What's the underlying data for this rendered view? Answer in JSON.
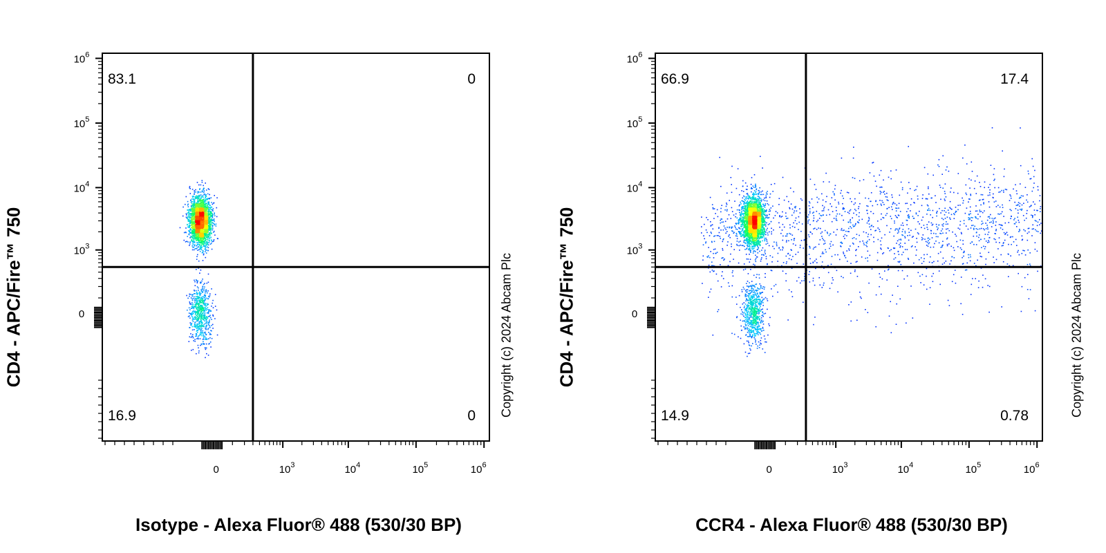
{
  "chart_data": [
    {
      "type": "scatter",
      "subtype": "flow-cytometry-density-plot",
      "xlabel": "Isotype - Alexa Fluor® 488 (530/30 BP)",
      "ylabel": "CD4 - APC/Fire™ 750",
      "x_scale": "biexponential",
      "y_scale": "biexponential",
      "x_ticks": [
        {
          "label": "0",
          "value": 0
        },
        {
          "label": "10",
          "sup": "3",
          "value": 1000
        },
        {
          "label": "10",
          "sup": "4",
          "value": 10000
        },
        {
          "label": "10",
          "sup": "5",
          "value": 100000
        },
        {
          "label": "10",
          "sup": "6",
          "value": 1000000
        }
      ],
      "y_ticks": [
        {
          "label": "0",
          "value": 0
        },
        {
          "label": "10",
          "sup": "3",
          "value": 1000
        },
        {
          "label": "10",
          "sup": "4",
          "value": 10000
        },
        {
          "label": "10",
          "sup": "5",
          "value": 100000
        },
        {
          "label": "10",
          "sup": "6",
          "value": 1000000
        }
      ],
      "gate": {
        "x": 300,
        "y": 500
      },
      "quadrants": {
        "upper_left": "83.1",
        "upper_right": "0",
        "lower_left": "16.9",
        "lower_right": "0"
      },
      "populations": [
        {
          "x": -50,
          "y": 3000,
          "spread_x": 1.0,
          "spread_y": 0.8,
          "count": 2600
        },
        {
          "x": -50,
          "y": 20,
          "spread_x": 1.0,
          "spread_y": 1.0,
          "count": 650
        }
      ],
      "copyright": "Copyright (c) 2024 Abcam Plc"
    },
    {
      "type": "scatter",
      "subtype": "flow-cytometry-density-plot",
      "xlabel": "CCR4 - Alexa Fluor® 488 (530/30 BP)",
      "ylabel": "CD4 - APC/Fire™ 750",
      "x_scale": "biexponential",
      "y_scale": "biexponential",
      "x_ticks": [
        {
          "label": "0",
          "value": 0
        },
        {
          "label": "10",
          "sup": "3",
          "value": 1000
        },
        {
          "label": "10",
          "sup": "4",
          "value": 10000
        },
        {
          "label": "10",
          "sup": "5",
          "value": 100000
        },
        {
          "label": "10",
          "sup": "6",
          "value": 1000000
        }
      ],
      "y_ticks": [
        {
          "label": "0",
          "value": 0
        },
        {
          "label": "10",
          "sup": "3",
          "value": 1000
        },
        {
          "label": "10",
          "sup": "4",
          "value": 10000
        },
        {
          "label": "10",
          "sup": "5",
          "value": 100000
        },
        {
          "label": "10",
          "sup": "6",
          "value": 1000000
        }
      ],
      "gate": {
        "x": 300,
        "y": 500
      },
      "quadrants": {
        "upper_left": "66.9",
        "upper_right": "17.4",
        "lower_left": "14.9",
        "lower_right": "0.78"
      },
      "populations": [
        {
          "x": -50,
          "y": 3000,
          "spread_x": 1.0,
          "spread_y": 0.8,
          "count": 2600
        },
        {
          "x": -50,
          "y": 20,
          "spread_x": 1.0,
          "spread_y": 1.0,
          "count": 650
        },
        {
          "x": 800,
          "y": 2500,
          "spread_x": 2.6,
          "spread_y": 1.3,
          "count": 1500
        },
        {
          "x": 300,
          "y": 1000,
          "spread_x": 2.0,
          "spread_y": 2.0,
          "count": 500
        }
      ],
      "copyright": "Copyright (c) 2024 Abcam Plc"
    }
  ],
  "colors": {
    "density_low": "#0000ff",
    "density_mid_low": "#00c8ff",
    "density_mid": "#00ff64",
    "density_high": "#ffff00",
    "density_max": "#ff0000",
    "axis": "#000000",
    "background": "#ffffff"
  }
}
